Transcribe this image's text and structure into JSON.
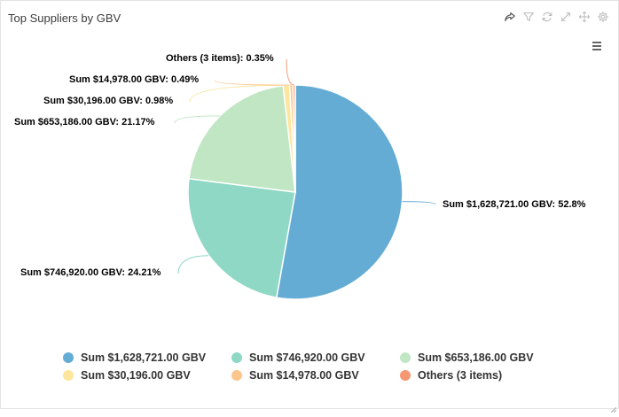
{
  "widget": {
    "title": "Top Suppliers by GBV",
    "toolbar": [
      "share-icon",
      "filter-icon",
      "refresh-icon",
      "expand-icon",
      "move-icon",
      "settings-icon"
    ],
    "menu": "hamburger-menu-icon"
  },
  "chart_data": {
    "type": "pie",
    "title": "",
    "categories": [
      "Sum $1,628,721.00 GBV",
      "Sum $746,920.00 GBV",
      "Sum $653,186.00 GBV",
      "Sum $30,196.00 GBV",
      "Sum $14,978.00 GBV",
      "Others (3 items)"
    ],
    "values": [
      52.8,
      24.21,
      21.17,
      0.98,
      0.49,
      0.35
    ],
    "labels": [
      "Sum $1,628,721.00 GBV: 52.8%",
      "Sum $746,920.00 GBV: 24.21%",
      "Sum $653,186.00 GBV: 21.17%",
      "Sum $30,196.00 GBV: 0.98%",
      "Sum $14,978.00 GBV: 0.49%",
      "Others (3 items): 0.35%"
    ],
    "colors": [
      "#64acd4",
      "#8fd8c5",
      "#c1e6c4",
      "#fde69c",
      "#fcc68d",
      "#f59872"
    ],
    "legend_position": "bottom"
  }
}
